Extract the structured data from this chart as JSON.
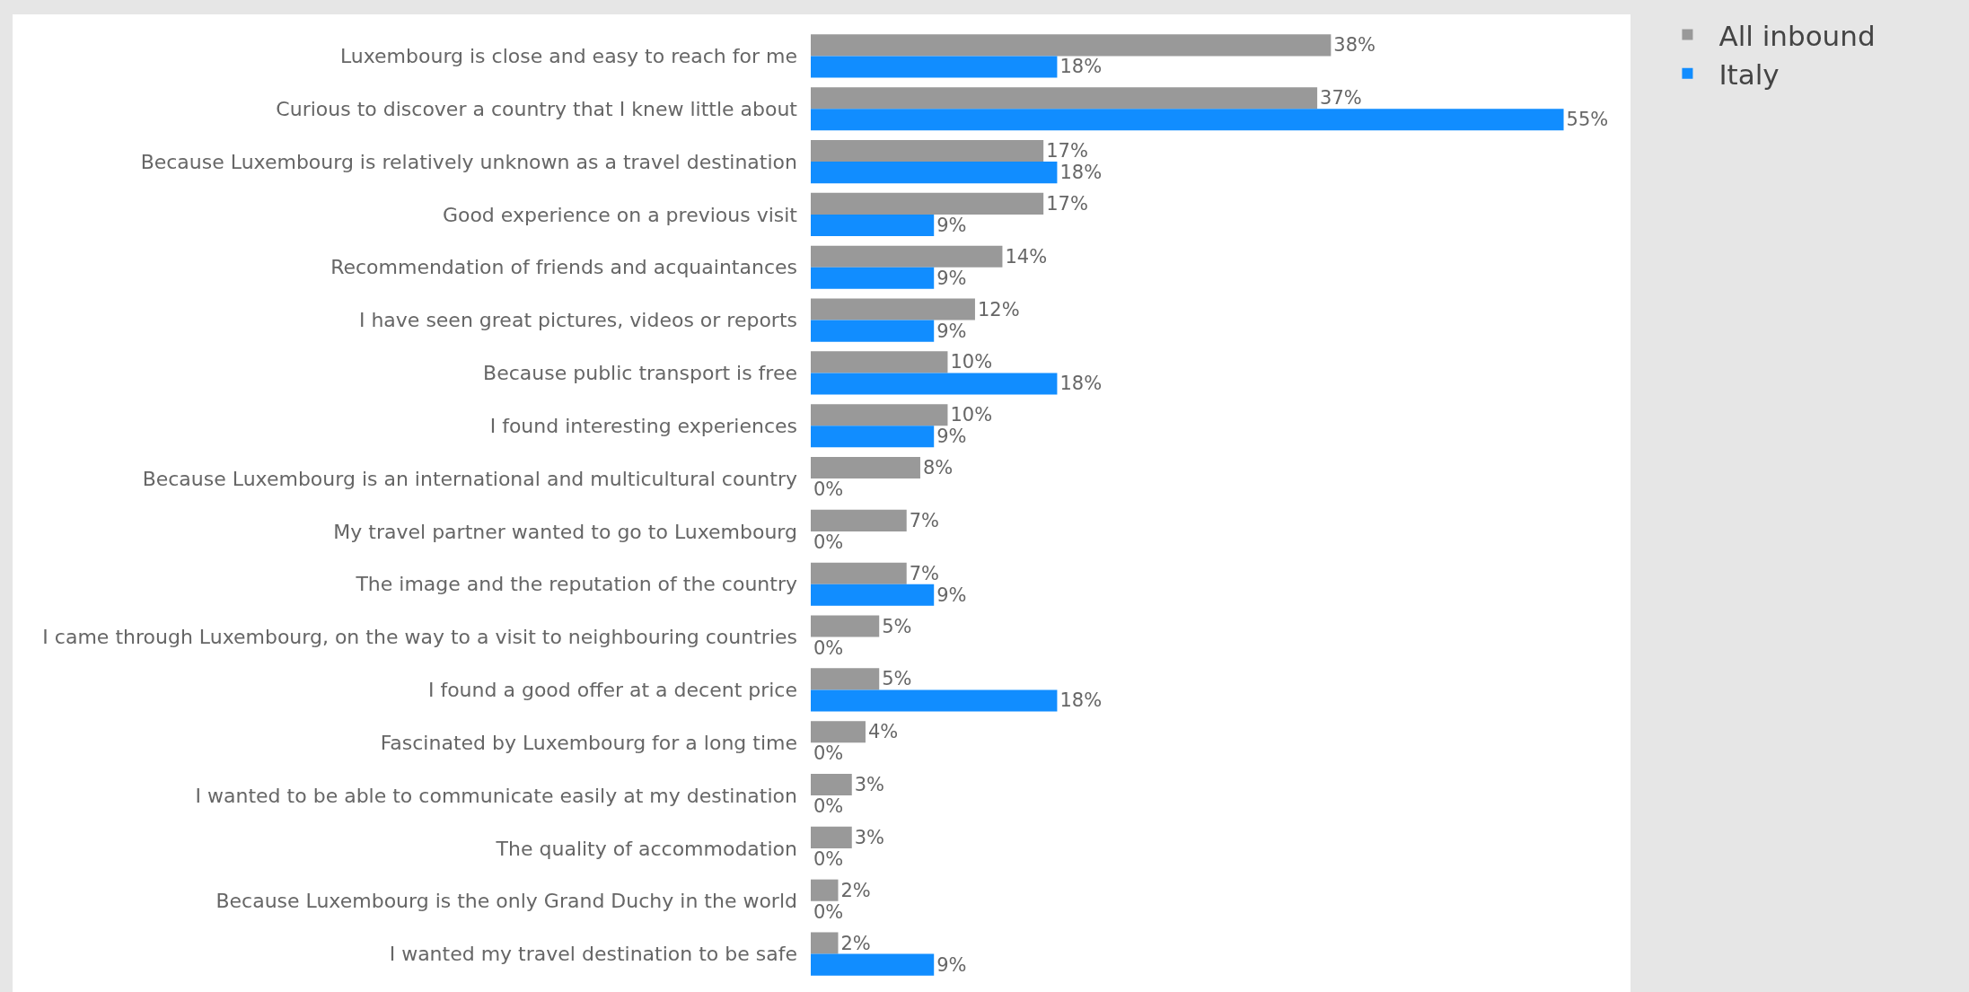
{
  "chart_data": {
    "type": "bar",
    "orientation": "horizontal",
    "legend": "top right",
    "grid": false,
    "tick_labels": "y",
    "categories": [
      "Luxembourg is close and easy to reach for me",
      "Curious to discover a country that I knew little about",
      "Because Luxembourg is relatively unknown as a travel destination",
      "Good experience on a previous visit",
      "Recommendation of friends and acquaintances",
      "I have seen great pictures, videos or reports",
      "Because public transport is free",
      "I found interesting experiences",
      "Because Luxembourg is an international and multicultural country",
      "My travel partner wanted to go to Luxembourg",
      "The image and the reputation of the country",
      "I came through Luxembourg, on the way to a visit to neighbouring countries",
      "I found a good offer at a decent price",
      "Fascinated by Luxembourg for a long time",
      "I wanted to be able to communicate easily at my destination",
      "The quality of accommodation",
      "Because Luxembourg is the only Grand Duchy in the world",
      "I wanted my travel destination to be safe"
    ],
    "series": [
      {
        "name": "All inbound",
        "color": "#999999",
        "values": [
          38,
          37,
          17,
          17,
          14,
          12,
          10,
          10,
          8,
          7,
          7,
          5,
          5,
          4,
          3,
          3,
          2,
          2
        ],
        "value_labels": [
          "38%",
          "37%",
          "17%",
          "17%",
          "14%",
          "12%",
          "10%",
          "10%",
          "8%",
          "7%",
          "7%",
          "5%",
          "5%",
          "4%",
          "3%",
          "3%",
          "2%",
          "2%"
        ]
      },
      {
        "name": "Italy",
        "color": "#118dff",
        "values": [
          18,
          55,
          18,
          9,
          9,
          9,
          18,
          9,
          0,
          0,
          9,
          0,
          18,
          0,
          0,
          0,
          0,
          9
        ],
        "value_labels": [
          "18%",
          "55%",
          "18%",
          "9%",
          "9%",
          "9%",
          "18%",
          "9%",
          "0%",
          "0%",
          "9%",
          "0%",
          "18%",
          "0%",
          "0%",
          "0%",
          "0%",
          "9%"
        ]
      }
    ]
  }
}
